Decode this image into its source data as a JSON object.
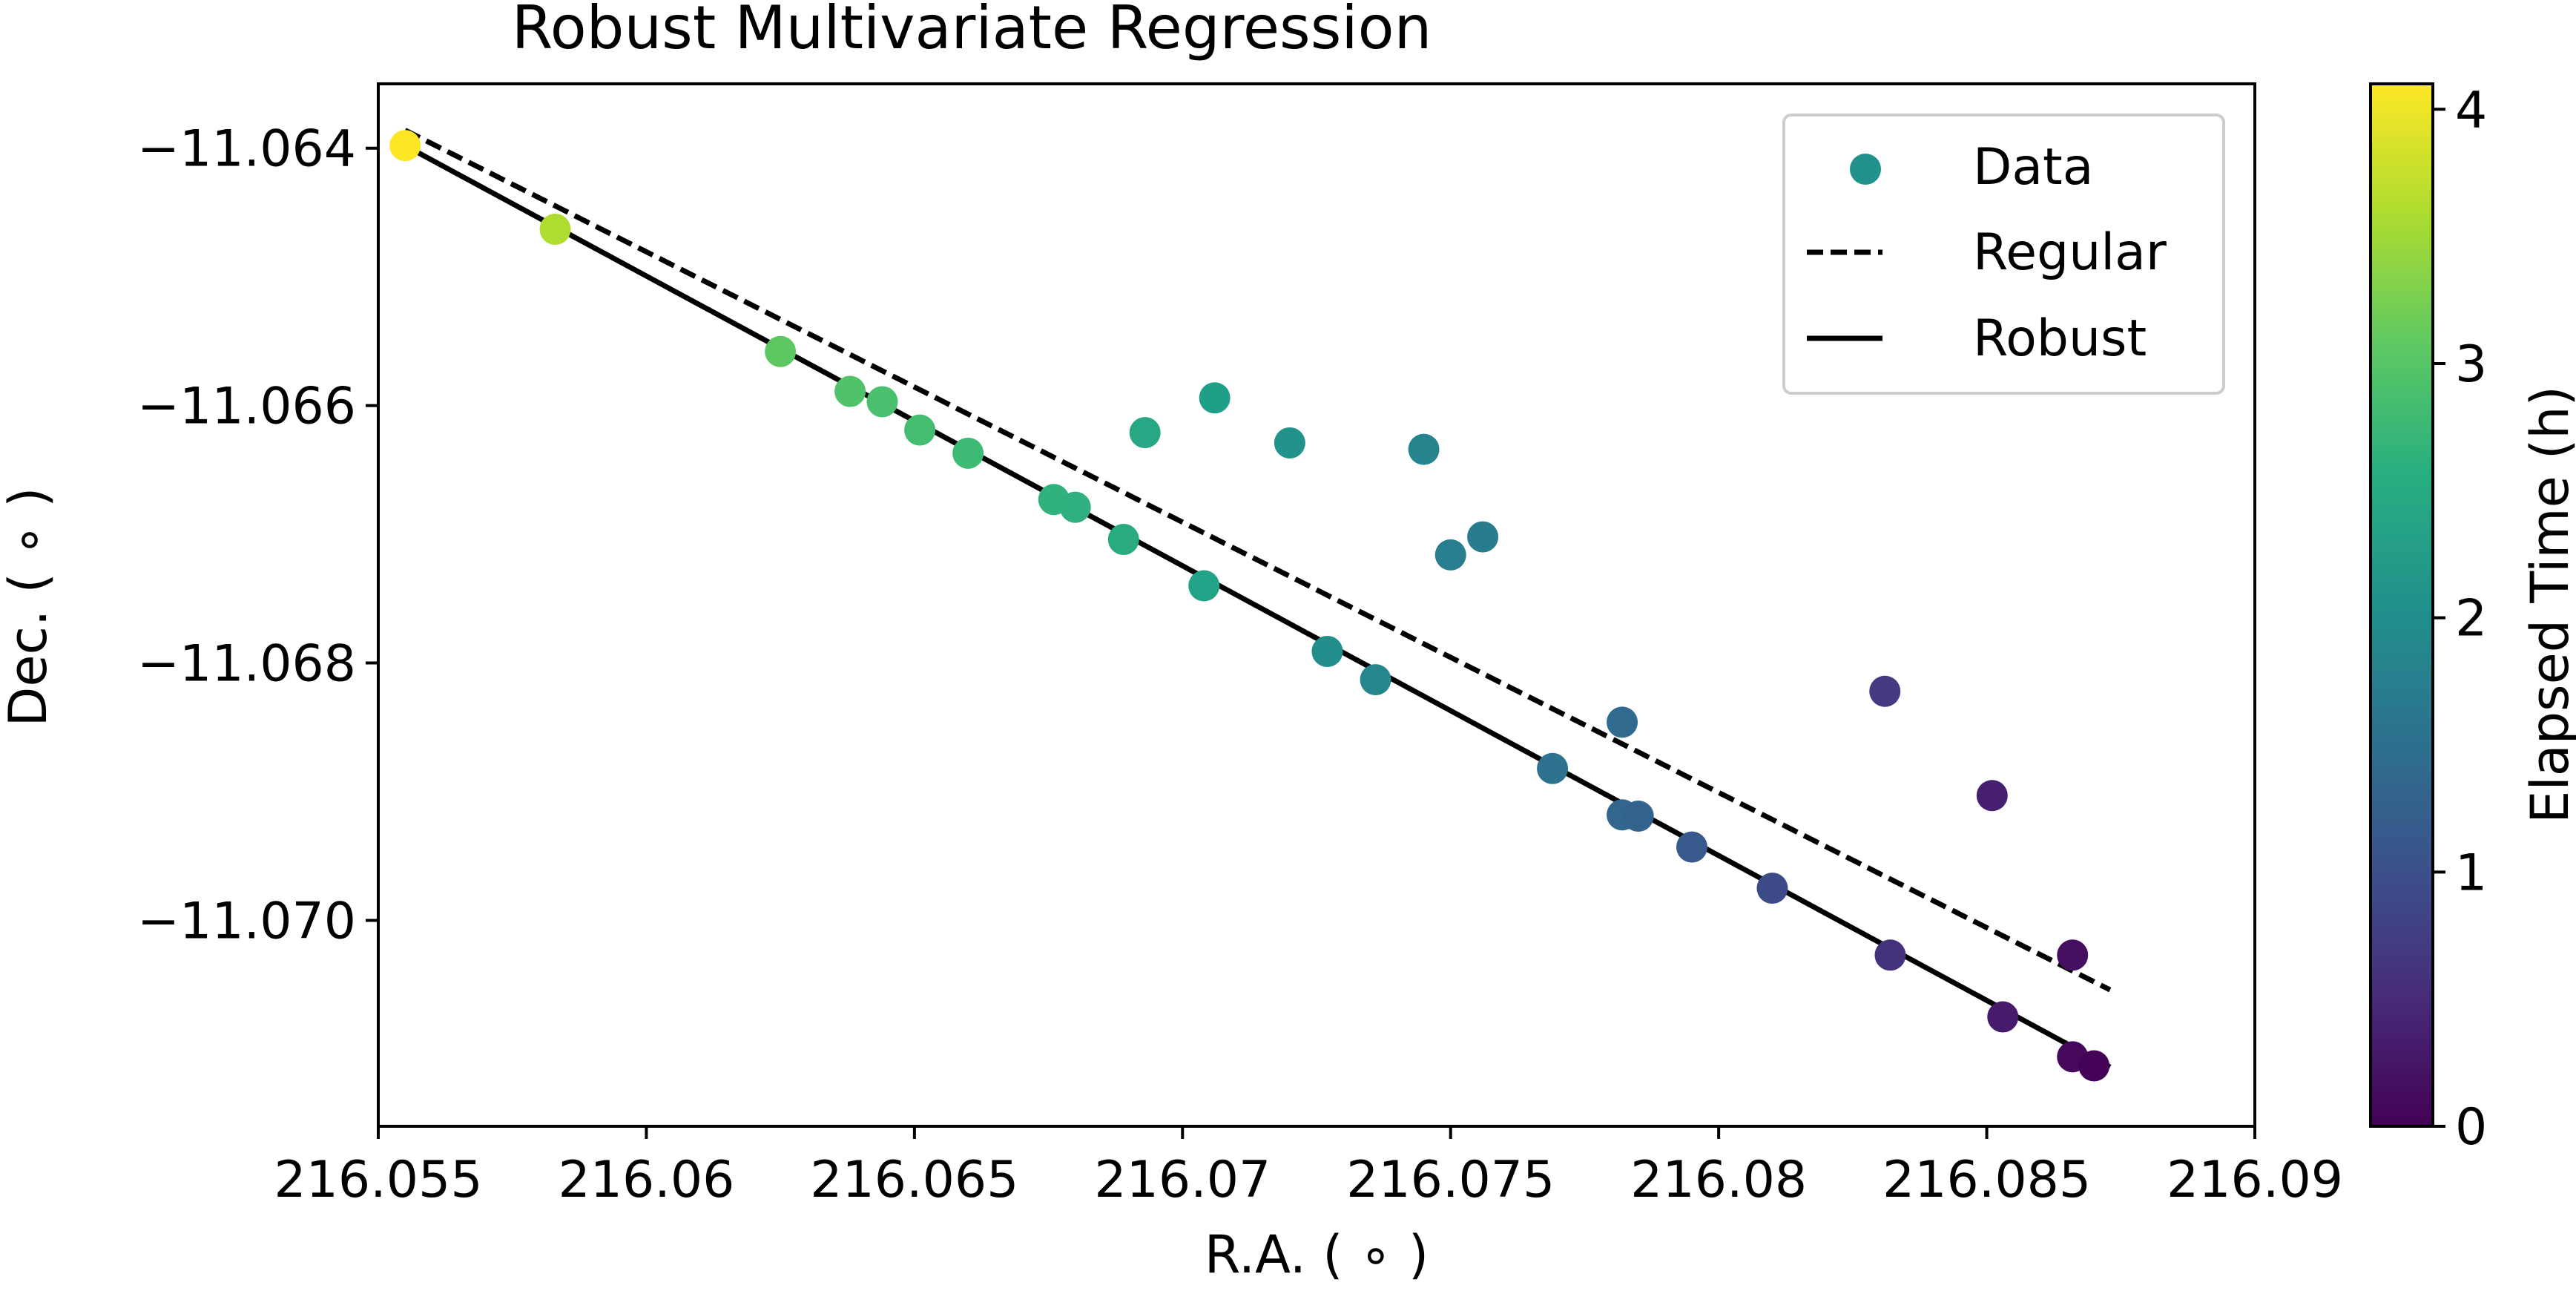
{
  "chart_data": {
    "type": "scatter",
    "title": "Robust Multivariate Regression",
    "xlabel": "R.A. ( ∘ )",
    "ylabel": "Dec. ( ∘ )",
    "xlim": [
      216.055,
      216.09
    ],
    "ylim": [
      -11.0716,
      -11.0635
    ],
    "x_ticks": [
      216.055,
      216.06,
      216.065,
      216.07,
      216.075,
      216.08,
      216.085,
      216.09
    ],
    "x_tick_labels": [
      "216.055",
      "216.06",
      "216.065",
      "216.07",
      "216.075",
      "216.08",
      "216.085",
      "216.09"
    ],
    "y_ticks": [
      -11.064,
      -11.066,
      -11.068,
      -11.07
    ],
    "y_tick_labels": [
      "−11.064",
      "−11.066",
      "−11.068",
      "−11.070"
    ],
    "grid": false,
    "legend": {
      "location": "top-right",
      "entries": [
        {
          "label": "Data",
          "style": "marker"
        },
        {
          "label": "Regular",
          "style": "dashed"
        },
        {
          "label": "Robust",
          "style": "solid"
        }
      ]
    },
    "colorbar": {
      "label": "Elapsed Time (h)",
      "colormap": "viridis",
      "range": [
        0,
        4.1
      ],
      "ticks": [
        0,
        1,
        2,
        3,
        4
      ],
      "tick_labels": [
        "0",
        "1",
        "2",
        "3",
        "4"
      ]
    },
    "series": [
      {
        "name": "Data",
        "kind": "scatter",
        "points": [
          {
            "x": 216.0555,
            "y": -11.06398,
            "t": 4.1
          },
          {
            "x": 216.0583,
            "y": -11.06463,
            "t": 3.6
          },
          {
            "x": 216.0625,
            "y": -11.06558,
            "t": 3.05
          },
          {
            "x": 216.0638,
            "y": -11.06589,
            "t": 2.95
          },
          {
            "x": 216.0644,
            "y": -11.06597,
            "t": 2.9
          },
          {
            "x": 216.0651,
            "y": -11.06619,
            "t": 2.85
          },
          {
            "x": 216.066,
            "y": -11.06637,
            "t": 2.8
          },
          {
            "x": 216.0676,
            "y": -11.06673,
            "t": 2.65
          },
          {
            "x": 216.068,
            "y": -11.06679,
            "t": 2.6
          },
          {
            "x": 216.0689,
            "y": -11.06704,
            "t": 2.5
          },
          {
            "x": 216.0693,
            "y": -11.06621,
            "t": 2.45
          },
          {
            "x": 216.0704,
            "y": -11.0674,
            "t": 2.35
          },
          {
            "x": 216.0706,
            "y": -11.06594,
            "t": 2.3
          },
          {
            "x": 216.072,
            "y": -11.06629,
            "t": 2.1
          },
          {
            "x": 216.0727,
            "y": -11.06791,
            "t": 2.0
          },
          {
            "x": 216.0736,
            "y": -11.06813,
            "t": 1.9
          },
          {
            "x": 216.0745,
            "y": -11.06634,
            "t": 1.85
          },
          {
            "x": 216.075,
            "y": -11.06716,
            "t": 1.75
          },
          {
            "x": 216.0756,
            "y": -11.06702,
            "t": 1.7
          },
          {
            "x": 216.0769,
            "y": -11.06882,
            "t": 1.55
          },
          {
            "x": 216.0782,
            "y": -11.06846,
            "t": 1.4
          },
          {
            "x": 216.0782,
            "y": -11.06918,
            "t": 1.35
          },
          {
            "x": 216.0785,
            "y": -11.06919,
            "t": 1.3
          },
          {
            "x": 216.0795,
            "y": -11.06943,
            "t": 1.15
          },
          {
            "x": 216.081,
            "y": -11.06975,
            "t": 0.95
          },
          {
            "x": 216.0831,
            "y": -11.06822,
            "t": 0.7
          },
          {
            "x": 216.0832,
            "y": -11.07027,
            "t": 0.6
          },
          {
            "x": 216.0851,
            "y": -11.06903,
            "t": 0.35
          },
          {
            "x": 216.0853,
            "y": -11.07075,
            "t": 0.3
          },
          {
            "x": 216.0866,
            "y": -11.07027,
            "t": 0.15
          },
          {
            "x": 216.0866,
            "y": -11.07106,
            "t": 0.08
          },
          {
            "x": 216.087,
            "y": -11.07113,
            "t": 0.02
          }
        ]
      },
      {
        "name": "Regular",
        "kind": "line",
        "style": "dashed",
        "x": [
          216.0555,
          216.0873
        ],
        "y": [
          -11.06386,
          -11.07054
        ]
      },
      {
        "name": "Robust",
        "kind": "line",
        "style": "solid",
        "x": [
          216.0555,
          216.0873
        ],
        "y": [
          -11.06398,
          -11.07114
        ]
      }
    ]
  }
}
